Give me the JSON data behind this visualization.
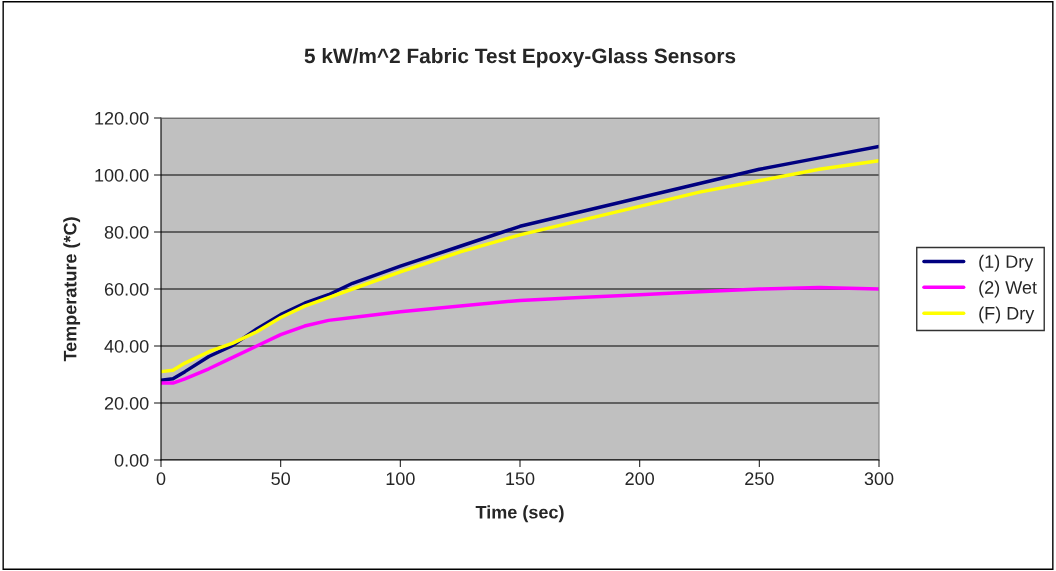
{
  "chart_data": {
    "type": "line",
    "title": "5 kW/m^2 Fabric Test Epoxy-Glass Sensors",
    "xlabel": "Time (sec)",
    "ylabel": "Temperature (*C)",
    "x": [
      0,
      5,
      10,
      20,
      30,
      40,
      50,
      60,
      70,
      80,
      100,
      125,
      150,
      175,
      200,
      225,
      250,
      275,
      300
    ],
    "series": [
      {
        "name": "(1) Dry",
        "color": "#000080",
        "values": [
          28,
          28.5,
          31,
          36.3,
          40.2,
          46,
          51,
          55,
          58,
          62,
          68,
          75,
          82,
          87,
          92,
          97,
          102,
          106,
          110
        ]
      },
      {
        "name": "(2) Wet",
        "color": "#ff00ff",
        "values": [
          27,
          27,
          28.5,
          32,
          36,
          40,
          44,
          47,
          49,
          50,
          52,
          54,
          56,
          57,
          58,
          59,
          60,
          60.5,
          60
        ]
      },
      {
        "name": "(F) Dry",
        "color": "#ffff00",
        "values": [
          31,
          31.5,
          34,
          38,
          41,
          45,
          50,
          54,
          57,
          60,
          66,
          73,
          79,
          84,
          89,
          94,
          98,
          102,
          105
        ]
      }
    ],
    "xlim": [
      0,
      300
    ],
    "xticks": [
      0,
      50,
      100,
      150,
      200,
      250,
      300
    ],
    "ylim": [
      0,
      120
    ],
    "yticks": [
      {
        "value": 0,
        "label": "0.00"
      },
      {
        "value": 20,
        "label": "20.00"
      },
      {
        "value": 40,
        "label": "40.00"
      },
      {
        "value": 60,
        "label": "60.00"
      },
      {
        "value": 80,
        "label": "80.00"
      },
      {
        "value": 100,
        "label": "100.00"
      },
      {
        "value": 120,
        "label": "120.00"
      }
    ],
    "grid": "y",
    "legend": "right",
    "marker": "none",
    "line_style": "solid"
  }
}
